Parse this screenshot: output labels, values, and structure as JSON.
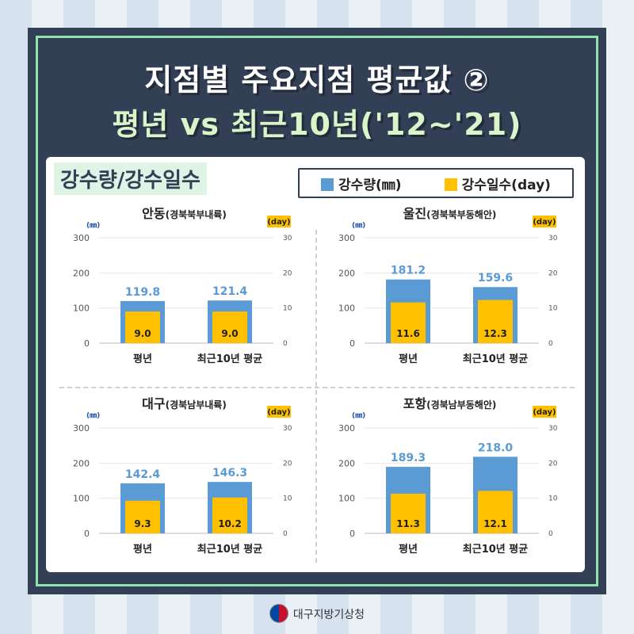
{
  "header": {
    "title_line1": "지점별 주요지점 평균값 ②",
    "title_line2": "평년 vs 최근10년('12~'21)"
  },
  "section_label": "강수량/강수일수",
  "legend": {
    "rain_label": "강수량(㎜)",
    "days_label": "강수일수(day)"
  },
  "colors": {
    "rain": "#5b9bd5",
    "days": "#ffc000",
    "rain_text": "#5b9bd5"
  },
  "footer": {
    "agency": "대구지방기상청"
  },
  "chart_data": [
    {
      "type": "bar",
      "title": "안동",
      "subtitle": "(경북북부내륙)",
      "left_unit": "(㎜)",
      "right_unit": "(day)",
      "categories": [
        "평년",
        "최근10년 평균"
      ],
      "series": [
        {
          "name": "강수량(㎜)",
          "axis": "left",
          "values": [
            119.8,
            121.4
          ]
        },
        {
          "name": "강수일수(day)",
          "axis": "right",
          "values": [
            9.0,
            9.0
          ]
        }
      ],
      "ylim": [
        0,
        300
      ],
      "ylim_right": [
        0,
        30
      ],
      "yticks": [
        0,
        100,
        200,
        300
      ],
      "yticks_right": [
        0,
        10,
        20,
        30
      ]
    },
    {
      "type": "bar",
      "title": "울진",
      "subtitle": "(경북북부동해안)",
      "left_unit": "(㎜)",
      "right_unit": "(day)",
      "categories": [
        "평년",
        "최근10년 평균"
      ],
      "series": [
        {
          "name": "강수량(㎜)",
          "axis": "left",
          "values": [
            181.2,
            159.6
          ]
        },
        {
          "name": "강수일수(day)",
          "axis": "right",
          "values": [
            11.6,
            12.3
          ]
        }
      ],
      "ylim": [
        0,
        300
      ],
      "ylim_right": [
        0,
        30
      ],
      "yticks": [
        0,
        100,
        200,
        300
      ],
      "yticks_right": [
        0,
        10,
        20,
        30
      ]
    },
    {
      "type": "bar",
      "title": "대구",
      "subtitle": "(경북남부내륙)",
      "left_unit": "(㎜)",
      "right_unit": "(day)",
      "categories": [
        "평년",
        "최근10년 평균"
      ],
      "series": [
        {
          "name": "강수량(㎜)",
          "axis": "left",
          "values": [
            142.4,
            146.3
          ]
        },
        {
          "name": "강수일수(day)",
          "axis": "right",
          "values": [
            9.3,
            10.2
          ]
        }
      ],
      "ylim": [
        0,
        300
      ],
      "ylim_right": [
        0,
        30
      ],
      "yticks": [
        0,
        100,
        200,
        300
      ],
      "yticks_right": [
        0,
        10,
        20,
        30
      ]
    },
    {
      "type": "bar",
      "title": "포항",
      "subtitle": "(경북남부동해안)",
      "left_unit": "(㎜)",
      "right_unit": "(day)",
      "categories": [
        "평년",
        "최근10년 평균"
      ],
      "series": [
        {
          "name": "강수량(㎜)",
          "axis": "left",
          "values": [
            189.3,
            218.0
          ]
        },
        {
          "name": "강수일수(day)",
          "axis": "right",
          "values": [
            11.3,
            12.1
          ]
        }
      ],
      "ylim": [
        0,
        300
      ],
      "ylim_right": [
        0,
        30
      ],
      "yticks": [
        0,
        100,
        200,
        300
      ],
      "yticks_right": [
        0,
        10,
        20,
        30
      ]
    }
  ]
}
